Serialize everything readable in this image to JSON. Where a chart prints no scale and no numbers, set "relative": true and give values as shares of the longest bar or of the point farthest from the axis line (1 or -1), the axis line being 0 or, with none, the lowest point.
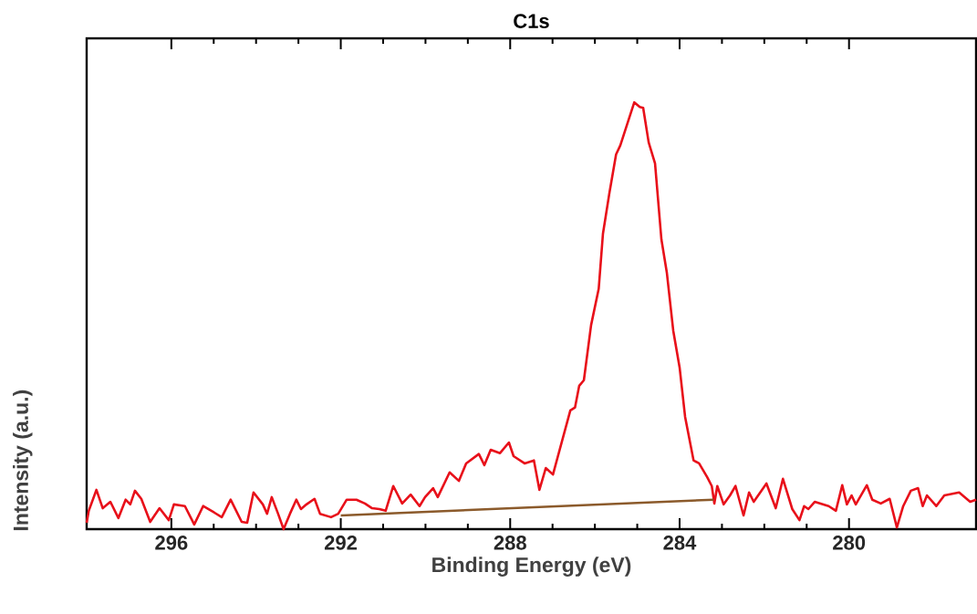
{
  "chart_data": {
    "type": "line",
    "title": "C1s",
    "xlabel": "Binding Energy (eV)",
    "ylabel": "Intensity (a.u.)",
    "relative": true,
    "xlim": [
      298,
      277
    ],
    "xticks": [
      296,
      292,
      288,
      284,
      280
    ],
    "grid": false,
    "marker": "none",
    "line_style": "solid",
    "series": [
      {
        "color": "#e8101a",
        "x": [
          298.0,
          297.95,
          297.77,
          297.62,
          297.44,
          297.25,
          297.08,
          296.97,
          296.86,
          296.71,
          296.5,
          296.28,
          296.06,
          295.94,
          295.68,
          295.46,
          295.25,
          294.99,
          294.81,
          294.6,
          294.34,
          294.21,
          294.06,
          293.84,
          293.74,
          293.63,
          293.48,
          293.35,
          293.2,
          293.05,
          292.94,
          292.81,
          292.62,
          292.49,
          292.23,
          292.06,
          291.86,
          291.63,
          291.43,
          291.26,
          291.09,
          290.94,
          290.76,
          290.55,
          290.35,
          290.14,
          290.01,
          289.82,
          289.71,
          289.43,
          289.21,
          289.04,
          288.74,
          288.61,
          288.46,
          288.24,
          288.03,
          287.92,
          287.66,
          287.44,
          287.31,
          287.16,
          286.99,
          286.58,
          286.47,
          286.37,
          286.26,
          286.09,
          285.91,
          285.81,
          285.66,
          285.5,
          285.4,
          285.07,
          284.94,
          284.86,
          284.73,
          284.58,
          284.43,
          284.3,
          284.15,
          284.0,
          283.87,
          283.67,
          283.54,
          283.35,
          283.24,
          283.18,
          283.11,
          282.96,
          282.81,
          282.68,
          282.49,
          282.36,
          282.25,
          281.95,
          281.73,
          281.56,
          281.34,
          281.17,
          281.06,
          280.96,
          280.81,
          280.48,
          280.31,
          280.16,
          280.05,
          279.94,
          279.84,
          279.58,
          279.45,
          279.25,
          279.04,
          278.87,
          278.72,
          278.54,
          278.37,
          278.26,
          278.16,
          277.94,
          277.75,
          277.4,
          277.14,
          277.0
        ],
        "values": [
          0.015,
          0.043,
          0.092,
          0.049,
          0.064,
          0.026,
          0.069,
          0.058,
          0.09,
          0.071,
          0.017,
          0.049,
          0.021,
          0.058,
          0.054,
          0.011,
          0.054,
          0.039,
          0.028,
          0.069,
          0.017,
          0.015,
          0.086,
          0.058,
          0.036,
          0.075,
          0.036,
          0.0,
          0.036,
          0.069,
          0.047,
          0.058,
          0.071,
          0.036,
          0.028,
          0.036,
          0.069,
          0.069,
          0.06,
          0.049,
          0.047,
          0.043,
          0.101,
          0.06,
          0.081,
          0.054,
          0.075,
          0.096,
          0.075,
          0.133,
          0.113,
          0.154,
          0.176,
          0.15,
          0.186,
          0.178,
          0.203,
          0.171,
          0.154,
          0.161,
          0.092,
          0.143,
          0.128,
          0.278,
          0.285,
          0.336,
          0.349,
          0.478,
          0.563,
          0.692,
          0.786,
          0.878,
          0.899,
          1.0,
          0.989,
          0.987,
          0.906,
          0.857,
          0.679,
          0.6,
          0.465,
          0.379,
          0.263,
          0.161,
          0.154,
          0.122,
          0.101,
          0.06,
          0.101,
          0.058,
          0.079,
          0.101,
          0.032,
          0.086,
          0.064,
          0.107,
          0.049,
          0.118,
          0.047,
          0.021,
          0.054,
          0.047,
          0.064,
          0.054,
          0.043,
          0.103,
          0.058,
          0.079,
          0.058,
          0.103,
          0.069,
          0.06,
          0.071,
          0.004,
          0.054,
          0.09,
          0.096,
          0.054,
          0.079,
          0.054,
          0.079,
          0.086,
          0.064,
          0.069
        ]
      },
      {
        "color": "#8b5a2b",
        "x": [
          292.0,
          283.2
        ],
        "values": [
          0.032,
          0.069
        ]
      }
    ]
  }
}
